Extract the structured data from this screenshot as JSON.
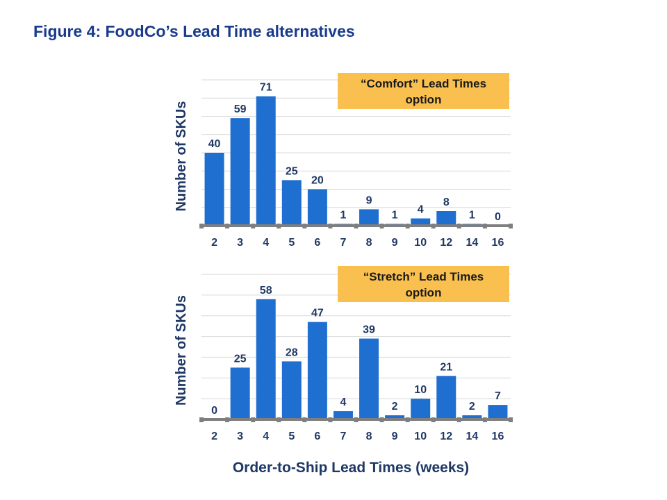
{
  "title": "Figure 4:  FoodCo’s Lead Time alternatives",
  "xlabel": "Order-to-Ship Lead Times (weeks)",
  "colors": {
    "bar": "#1f6fd0",
    "axis": "#7f7f7f",
    "grid": "#d9d9d9",
    "text": "#1f3864",
    "note_bg": "#f9c050"
  },
  "chart_data": [
    {
      "type": "bar",
      "title": "“Comfort” Lead Times option",
      "title_lines": [
        "“Comfort” Lead Times",
        "option"
      ],
      "ylabel": "Number of SKUs",
      "xlabel": "Order-to-Ship Lead Times (weeks)",
      "categories": [
        "2",
        "3",
        "4",
        "5",
        "6",
        "7",
        "8",
        "9",
        "10",
        "12",
        "14",
        "16"
      ],
      "values": [
        40,
        59,
        71,
        25,
        20,
        1,
        9,
        1,
        4,
        8,
        1,
        0
      ],
      "ylim": [
        0,
        80
      ],
      "grid": true
    },
    {
      "type": "bar",
      "title": "“Stretch” Lead Times option",
      "title_lines": [
        "“Stretch” Lead Times",
        "option"
      ],
      "ylabel": "Number of SKUs",
      "xlabel": "Order-to-Ship Lead Times (weeks)",
      "categories": [
        "2",
        "3",
        "4",
        "5",
        "6",
        "7",
        "8",
        "9",
        "10",
        "12",
        "14",
        "16"
      ],
      "values": [
        0,
        25,
        58,
        28,
        47,
        4,
        39,
        2,
        10,
        21,
        2,
        7
      ],
      "ylim": [
        0,
        70
      ],
      "grid": true
    }
  ]
}
